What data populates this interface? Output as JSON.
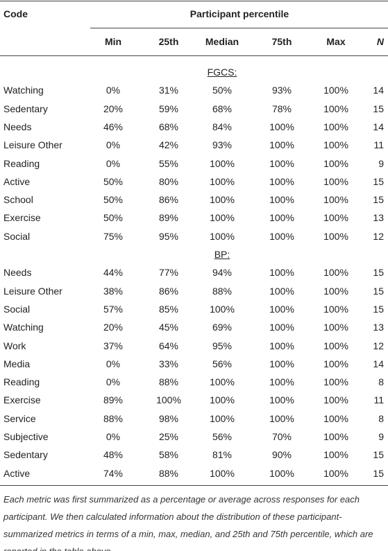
{
  "header": {
    "code": "Code",
    "group": "Participant percentile",
    "columns": [
      "Min",
      "25th",
      "Median",
      "75th",
      "Max",
      "N"
    ]
  },
  "sections": [
    {
      "label": "FGCS:",
      "rows": [
        [
          "Watching",
          "0%",
          "31%",
          "50%",
          "93%",
          "100%",
          "14"
        ],
        [
          "Sedentary",
          "20%",
          "59%",
          "68%",
          "78%",
          "100%",
          "15"
        ],
        [
          "Needs",
          "46%",
          "68%",
          "84%",
          "100%",
          "100%",
          "14"
        ],
        [
          "Leisure Other",
          "0%",
          "42%",
          "93%",
          "100%",
          "100%",
          "11"
        ],
        [
          "Reading",
          "0%",
          "55%",
          "100%",
          "100%",
          "100%",
          "9"
        ],
        [
          "Active",
          "50%",
          "80%",
          "100%",
          "100%",
          "100%",
          "15"
        ],
        [
          "School",
          "50%",
          "86%",
          "100%",
          "100%",
          "100%",
          "15"
        ],
        [
          "Exercise",
          "50%",
          "89%",
          "100%",
          "100%",
          "100%",
          "13"
        ],
        [
          "Social",
          "75%",
          "95%",
          "100%",
          "100%",
          "100%",
          "12"
        ]
      ]
    },
    {
      "label": "BP:",
      "rows": [
        [
          "Needs",
          "44%",
          "77%",
          "94%",
          "100%",
          "100%",
          "15"
        ],
        [
          "Leisure Other",
          "38%",
          "86%",
          "88%",
          "100%",
          "100%",
          "15"
        ],
        [
          "Social",
          "57%",
          "85%",
          "100%",
          "100%",
          "100%",
          "15"
        ],
        [
          "Watching",
          "20%",
          "45%",
          "69%",
          "100%",
          "100%",
          "13"
        ],
        [
          "Work",
          "37%",
          "64%",
          "95%",
          "100%",
          "100%",
          "12"
        ],
        [
          "Media",
          "0%",
          "33%",
          "56%",
          "100%",
          "100%",
          "14"
        ],
        [
          "Reading",
          "0%",
          "88%",
          "100%",
          "100%",
          "100%",
          "8"
        ],
        [
          "Exercise",
          "89%",
          "100%",
          "100%",
          "100%",
          "100%",
          "11"
        ],
        [
          "Service",
          "88%",
          "98%",
          "100%",
          "100%",
          "100%",
          "8"
        ],
        [
          "Subjective",
          "0%",
          "25%",
          "56%",
          "70%",
          "100%",
          "9"
        ],
        [
          "Sedentary",
          "48%",
          "58%",
          "81%",
          "90%",
          "100%",
          "15"
        ],
        [
          "Active",
          "74%",
          "88%",
          "100%",
          "100%",
          "100%",
          "15"
        ]
      ]
    }
  ],
  "footnote": "Each metric was first summarized as a percentage or average across responses for each participant. We then calculated information about the distribution of these participant-summarized metrics in terms of a min, max, median, and 25th and 75th percentile, which are reported in the table above."
}
